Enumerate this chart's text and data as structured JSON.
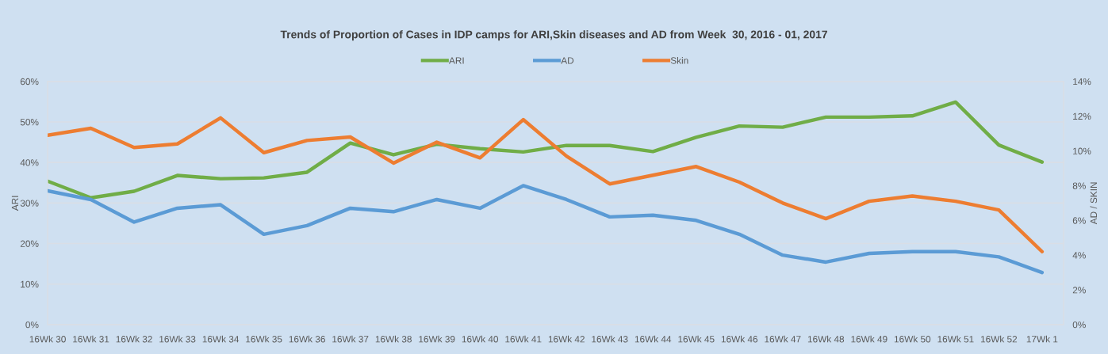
{
  "chart_data": {
    "type": "line",
    "title": "Trends of Proportion of Cases in IDP camps for ARI,Skin diseases and AD from Week  30, 2016 - 01, 2017",
    "ylabel": "ARI",
    "y2label": "AD / SKIN",
    "categories": [
      "16Wk 30",
      "16Wk 31",
      "16Wk 32",
      "16Wk 33",
      "16Wk 34",
      "16Wk 35",
      "16Wk 36",
      "16Wk 37",
      "16Wk 38",
      "16Wk 39",
      "16Wk 40",
      "16Wk 41",
      "16Wk 42",
      "16Wk 43",
      "16Wk 44",
      "16Wk 45",
      "16Wk 46",
      "16Wk 47",
      "16Wk 48",
      "16Wk 49",
      "16Wk 50",
      "16Wk 51",
      "16Wk 52",
      "17Wk 1"
    ],
    "series": [
      {
        "name": "ARI",
        "color": "#70ad47",
        "values": [
          35.4,
          31.3,
          32.9,
          36.8,
          36.0,
          36.2,
          37.6,
          44.8,
          41.9,
          44.5,
          43.4,
          42.6,
          44.2,
          44.2,
          42.7,
          46.2,
          49.0,
          48.7,
          51.2,
          51.2,
          51.5,
          54.9,
          44.3,
          40.1
        ]
      },
      {
        "name": "AD",
        "color": "#5b9bd5",
        "axis": "y2",
        "values": [
          7.7,
          7.2,
          5.9,
          6.7,
          6.9,
          5.2,
          5.7,
          6.7,
          6.5,
          7.2,
          6.7,
          8.0,
          7.2,
          6.2,
          6.3,
          6.0,
          5.2,
          4.0,
          3.6,
          4.1,
          4.2,
          4.2,
          3.9,
          3.0
        ]
      },
      {
        "name": "Skin",
        "color": "#ed7d31",
        "axis": "y2",
        "values": [
          10.9,
          11.3,
          10.2,
          10.4,
          11.9,
          9.9,
          10.6,
          10.8,
          9.3,
          10.5,
          9.6,
          11.8,
          9.7,
          8.1,
          8.6,
          9.1,
          8.2,
          7.0,
          6.1,
          7.1,
          7.4,
          7.1,
          6.6,
          4.2
        ]
      }
    ],
    "ylim": [
      0,
      60
    ],
    "yticks": [
      {
        "value": 0,
        "label": "0%"
      },
      {
        "value": 10,
        "label": "10%"
      },
      {
        "value": 20,
        "label": "20%"
      },
      {
        "value": 30,
        "label": "30%"
      },
      {
        "value": 40,
        "label": "40%"
      },
      {
        "value": 50,
        "label": "50%"
      },
      {
        "value": 60,
        "label": "60%"
      }
    ],
    "y2lim": [
      0,
      14
    ],
    "y2ticks": [
      {
        "value": 0,
        "label": "0%"
      },
      {
        "value": 2,
        "label": "2%"
      },
      {
        "value": 4,
        "label": "4%"
      },
      {
        "value": 6,
        "label": "6%"
      },
      {
        "value": 8,
        "label": "8%"
      },
      {
        "value": 10,
        "label": "10%"
      },
      {
        "value": 12,
        "label": "12%"
      },
      {
        "value": 14,
        "label": "14%"
      }
    ],
    "grid": "y",
    "legend": "top",
    "marker": "none",
    "line_style": "solid"
  }
}
